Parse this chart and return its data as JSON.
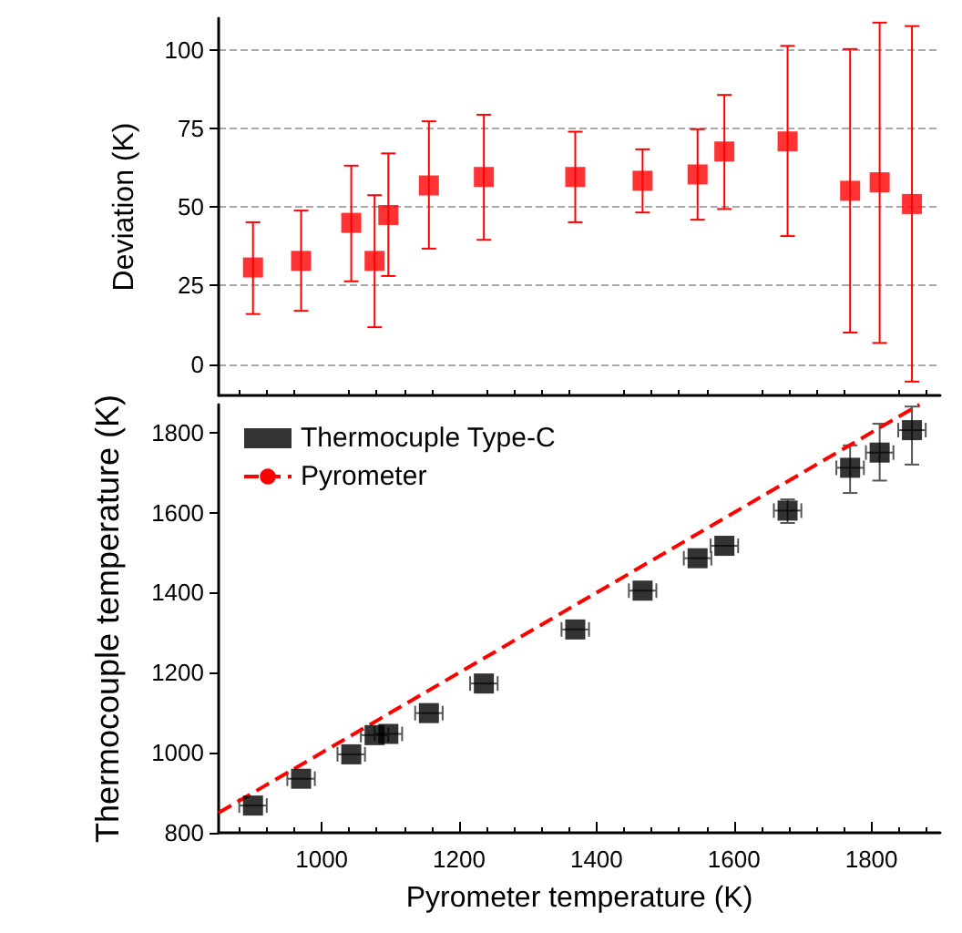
{
  "chart_data": [
    {
      "type": "scatter",
      "ylabel": "Deviation (K)",
      "x": [
        900,
        970,
        1043,
        1077,
        1097,
        1156,
        1236,
        1369,
        1467,
        1547,
        1586,
        1678,
        1769,
        1812,
        1859
      ],
      "series": [
        {
          "color": "#ff0000",
          "values": [
            30.7,
            32.8,
            44.9,
            32.8,
            47.4,
            56.8,
            59.5,
            59.5,
            58.3,
            60.3,
            67.6,
            70.8,
            55.1,
            57.8,
            50.9
          ],
          "errors": [
            [
              15.9,
              45.1
            ],
            [
              16.9,
              48.8
            ],
            [
              26.3,
              63.1
            ],
            [
              11.7,
              53.7
            ],
            [
              28.0,
              67.0
            ],
            [
              36.7,
              77.2
            ],
            [
              39.5,
              79.3
            ],
            [
              45.1,
              73.9
            ],
            [
              48.2,
              68.3
            ],
            [
              45.9,
              74.7
            ],
            [
              49.3,
              85.6
            ],
            [
              40.7,
              101.2
            ],
            [
              10.0,
              100.2
            ],
            [
              6.7,
              108.6
            ],
            [
              -5.6,
              107.5
            ]
          ]
        }
      ],
      "xlim": [
        850,
        1900
      ],
      "ylim": [
        -10,
        110
      ],
      "yticks": [
        0,
        25,
        50,
        75,
        100
      ],
      "grid": "y",
      "tick_labels": "y",
      "marker": "square"
    },
    {
      "type": "scatter",
      "xlabel": "Pyrometer temperature (K)",
      "ylabel": "Thermocouple temperature (K)",
      "legend": "top left",
      "marker": "square",
      "xlim": [
        850,
        1900
      ],
      "ylim": [
        800,
        1870
      ],
      "xticks": [
        1000,
        1200,
        1400,
        1600,
        1800
      ],
      "yticks": [
        800,
        1000,
        1200,
        1400,
        1600,
        1800
      ],
      "grid": false,
      "series": [
        {
          "name": "Thermocuple Type-C",
          "color": "#000000",
          "x": [
            900,
            970,
            1043,
            1077,
            1097,
            1156,
            1236,
            1369,
            1467,
            1547,
            1586,
            1678,
            1769,
            1812,
            1859
          ],
          "values": [
            868,
            935,
            996,
            1044,
            1047,
            1099,
            1173,
            1308,
            1405,
            1486,
            1517,
            1605,
            1712,
            1750,
            1806
          ],
          "errors": [
            null,
            null,
            null,
            null,
            null,
            null,
            null,
            null,
            null,
            null,
            null,
            [
              1574,
              1633
            ],
            [
              1649,
              1768
            ],
            [
              1680,
              1822
            ],
            [
              1720,
              1865
            ]
          ],
          "xerrors": [
            20,
            20,
            20,
            20,
            20,
            20,
            20,
            20,
            20,
            20,
            20,
            20,
            20,
            20,
            20
          ]
        },
        {
          "name": "Pyrometer",
          "type": "line",
          "color": "#ff0000",
          "line_style": "dashed",
          "marker": "none",
          "x": [
            850,
            1870
          ],
          "values": [
            850,
            1870
          ]
        }
      ]
    }
  ]
}
